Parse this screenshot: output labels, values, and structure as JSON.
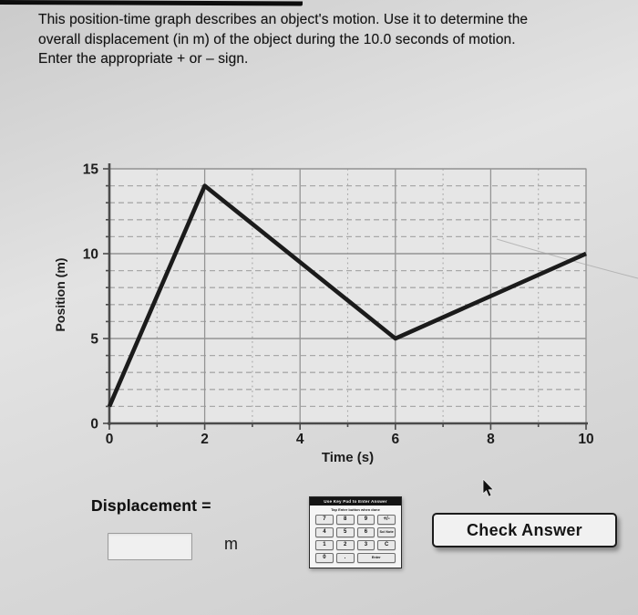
{
  "problem": {
    "text": "This position-time graph describes an object's motion. Use it to determine the\noverall displacement (in m) of the object during the 10.0 seconds of motion.\nEnter the appropriate + or – sign."
  },
  "chart_data": {
    "type": "line",
    "title": "",
    "xlabel": "Time (s)",
    "ylabel": "Position (m)",
    "xlim": [
      0,
      10
    ],
    "ylim": [
      0,
      15
    ],
    "x_major_ticks": [
      0,
      2,
      4,
      6,
      8,
      10
    ],
    "y_major_ticks": [
      0,
      5,
      10,
      15
    ],
    "minor_step": 1,
    "grid": true,
    "legend": false,
    "points": [
      [
        0,
        1
      ],
      [
        2,
        14
      ],
      [
        6,
        5
      ],
      [
        10,
        10
      ]
    ],
    "colors": {
      "line": "#1b1b1b",
      "grid_major": "#949494",
      "grid_minor": "#a9a9a9",
      "axis": "#4b4b4b",
      "plot_bg": "#e6e6e6",
      "tick_label": "#1c1c1c"
    }
  },
  "answer": {
    "label": "Displacement =",
    "value": "",
    "unit": "m"
  },
  "keypad": {
    "header": "Use Key Pad to Enter Answer",
    "subheader": "Tap Enter button when done",
    "rows": [
      [
        "7",
        "8",
        "9",
        "+/-"
      ],
      [
        "4",
        "5",
        "6",
        "Sci Note"
      ],
      [
        "1",
        "2",
        "3",
        "C"
      ],
      [
        "0",
        ".",
        "Enter"
      ]
    ]
  },
  "check_button": {
    "label": "Check Answer"
  }
}
